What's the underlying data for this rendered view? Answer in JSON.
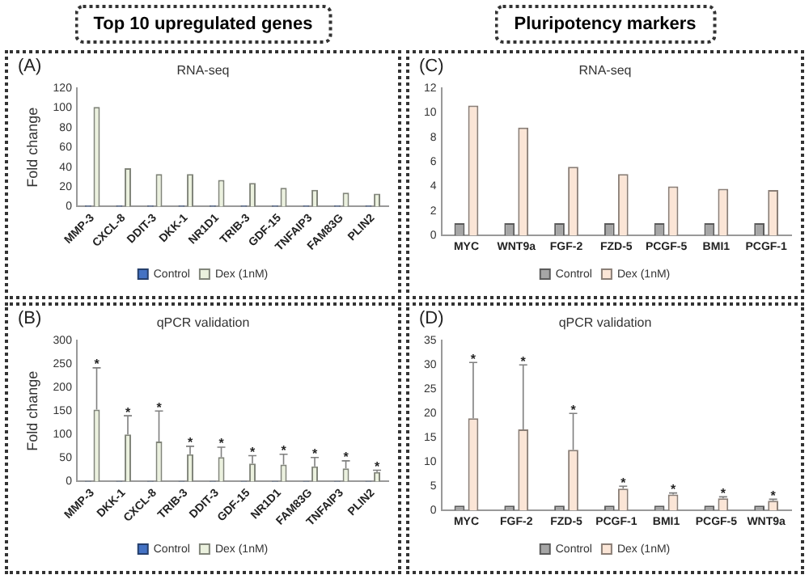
{
  "chart_data": [
    {
      "type": "bar",
      "title": "RNA-seq",
      "ylabel": "Fold change",
      "annotations": [
        "(A)",
        "Top 10 upregulated genes"
      ],
      "categories": [
        "MMP-3",
        "CXCL-8",
        "DDIT-3",
        "DKK-1",
        "NR1D1",
        "TRIB-3",
        "GDF-15",
        "TNFAIP3",
        "FAM83G",
        "PLIN2"
      ],
      "series": [
        {
          "name": "Control",
          "color": "#4472c4",
          "values": [
            1,
            1,
            1,
            1,
            1,
            1,
            1,
            1,
            1,
            1
          ]
        },
        {
          "name": "Dex (1nM)",
          "color": "#ebf1de",
          "values": [
            101,
            39,
            33,
            33,
            27,
            24,
            19,
            17,
            14,
            13
          ]
        }
      ],
      "ylim": [
        0,
        120
      ],
      "yticks": [
        0,
        20,
        40,
        60,
        80,
        100,
        120
      ],
      "grid": false,
      "legend": "bottom"
    },
    {
      "type": "bar",
      "title": "RNA-seq",
      "annotations": [
        "(C)",
        "Pluripotency markers"
      ],
      "categories": [
        "MYC",
        "WNT9a",
        "FGF-2",
        "FZD-5",
        "PCGF-5",
        "BMI1",
        "PCGF-1"
      ],
      "series": [
        {
          "name": "Control",
          "color": "#a6a6a6",
          "values": [
            1,
            1,
            1,
            1,
            1,
            1,
            1
          ]
        },
        {
          "name": "Dex (1nM)",
          "color": "#fbe5d6",
          "values": [
            10.6,
            8.8,
            5.6,
            5.0,
            4.0,
            3.8,
            3.7
          ]
        }
      ],
      "ylim": [
        0,
        12
      ],
      "yticks": [
        0,
        2,
        4,
        6,
        8,
        10,
        12
      ],
      "grid": false,
      "legend": "bottom"
    },
    {
      "type": "bar",
      "title": "qPCR validation",
      "ylabel": "Fold change",
      "annotations": [
        "(B)"
      ],
      "categories": [
        "MMP-3",
        "DKK-1",
        "CXCL-8",
        "TRIB-3",
        "DDIT-3",
        "GDF-15",
        "NR1D1",
        "FAM83G",
        "TNFAIP3",
        "PLIN2"
      ],
      "series": [
        {
          "name": "Control",
          "color": "#4472c4",
          "values": [
            1,
            1,
            1,
            1,
            1,
            1,
            1,
            1,
            1,
            1
          ]
        },
        {
          "name": "Dex (1nM)",
          "color": "#ebf1de",
          "values": [
            153,
            100,
            85,
            58,
            52,
            38,
            36,
            32,
            28,
            20
          ],
          "errors": [
            [
              153,
              242
            ],
            [
              100,
              140
            ],
            [
              85,
              150
            ],
            [
              58,
              75
            ],
            [
              52,
              73
            ],
            [
              38,
              55
            ],
            [
              36,
              58
            ],
            [
              32,
              51
            ],
            [
              28,
              44
            ],
            [
              20,
              24
            ]
          ],
          "value_labels": [
            "*",
            "*",
            "*",
            "*",
            "*",
            "*",
            "*",
            "*",
            "*",
            "*"
          ]
        }
      ],
      "ylim": [
        0,
        300
      ],
      "yticks": [
        0,
        50,
        100,
        150,
        200,
        250,
        300
      ],
      "grid": false,
      "legend": "bottom"
    },
    {
      "type": "bar",
      "title": "qPCR validation",
      "annotations": [
        "(D)",
        {
          "text": "*",
          "x": "MYC",
          "y": 30.5
        },
        {
          "text": "*",
          "x": "FGF-2",
          "y": 30
        },
        {
          "text": "*",
          "x": "FZD-5",
          "y": 20
        },
        {
          "text": "*",
          "x": "PCGF-1",
          "y": 5
        },
        {
          "text": "*",
          "x": "BMI1",
          "y": 3.6
        },
        {
          "text": "*",
          "x": "PCGF-5",
          "y": 2.8
        },
        {
          "text": "*",
          "x": "WNT9a",
          "y": 2.3
        }
      ],
      "categories": [
        "MYC",
        "FGF-2",
        "FZD-5",
        "PCGF-1",
        "BMI1",
        "PCGF-5",
        "WNT9a"
      ],
      "series": [
        {
          "name": "Control",
          "color": "#a6a6a6",
          "values": [
            1,
            1,
            1,
            1,
            1,
            1,
            1
          ]
        },
        {
          "name": "Dex (1nM)",
          "color": "#fbe5d6",
          "values": [
            19,
            16.7,
            12.5,
            4.5,
            3.3,
            2.5,
            2
          ],
          "errors": [
            [
              19,
              30.5
            ],
            [
              16.7,
              30
            ],
            [
              12.5,
              20
            ],
            [
              4.5,
              5
            ],
            [
              3.3,
              3.6
            ],
            [
              2.5,
              2.8
            ],
            [
              2,
              2.3
            ]
          ]
        }
      ],
      "ylim": [
        0,
        35
      ],
      "yticks": [
        0,
        5,
        10,
        15,
        20,
        25,
        30,
        35
      ],
      "grid": false,
      "legend": "bottom"
    }
  ]
}
